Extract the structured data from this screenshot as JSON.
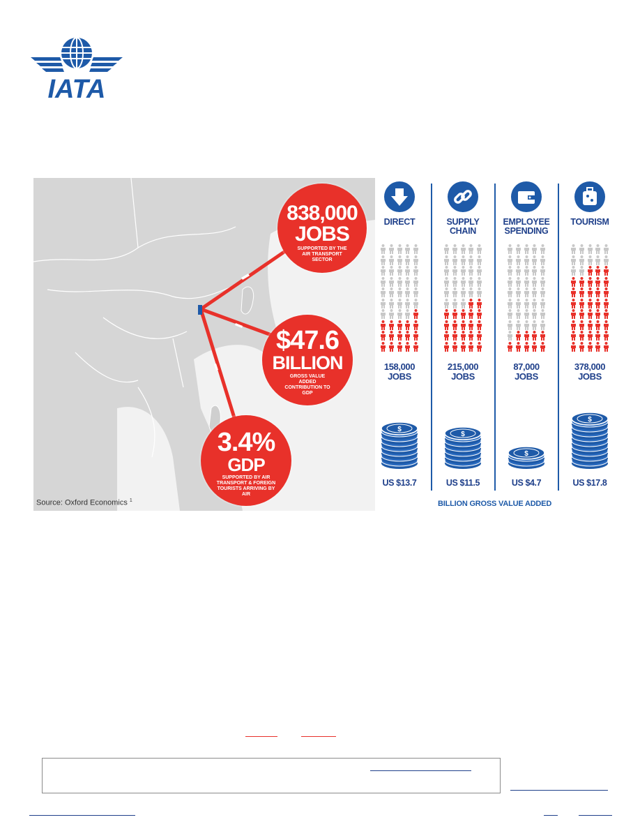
{
  "brand": {
    "logo_text": "IATA",
    "color_primary": "#1e5aa8",
    "color_accent": "#e8312a"
  },
  "map": {
    "bubbles": [
      {
        "big": "838,000",
        "big2": "JOBS",
        "sub": "SUPPORTED BY THE AIR TRANSPORT SECTOR"
      },
      {
        "big": "$47.6",
        "big2": "BILLION",
        "sub": "GROSS VALUE ADDED CONTRIBUTION TO GDP"
      },
      {
        "big": "3.4%",
        "big2": "GDP",
        "sub": "SUPPORTED BY AIR TRANSPORT & FOREIGN TOURISTS ARRIVING BY AIR"
      }
    ],
    "source": "Source: Oxford Economics",
    "source_sup": "1"
  },
  "columns": [
    {
      "icon": "arrow-down-icon",
      "head": [
        "DIRECT"
      ],
      "jobs": [
        "158,000",
        "JOBS"
      ],
      "value": "US $13.7",
      "filled_people": 16,
      "coin_stack": 7
    },
    {
      "icon": "chain-link-icon",
      "head": [
        "SUPPLY",
        "CHAIN"
      ],
      "jobs": [
        "215,000",
        "JOBS"
      ],
      "value": "US $11.5",
      "filled_people": 22,
      "coin_stack": 6
    },
    {
      "icon": "wallet-icon",
      "head": [
        "EMPLOYEE",
        "SPENDING"
      ],
      "jobs": [
        "87,000",
        "JOBS"
      ],
      "value": "US $4.7",
      "filled_people": 9,
      "coin_stack": 2
    },
    {
      "icon": "suitcase-icon",
      "head": [
        "TOURISM"
      ],
      "jobs": [
        "378,000",
        "JOBS"
      ],
      "value": "US $17.8",
      "filled_people": 38,
      "coin_stack": 9
    }
  ],
  "caption": "BILLION GROSS VALUE ADDED"
}
